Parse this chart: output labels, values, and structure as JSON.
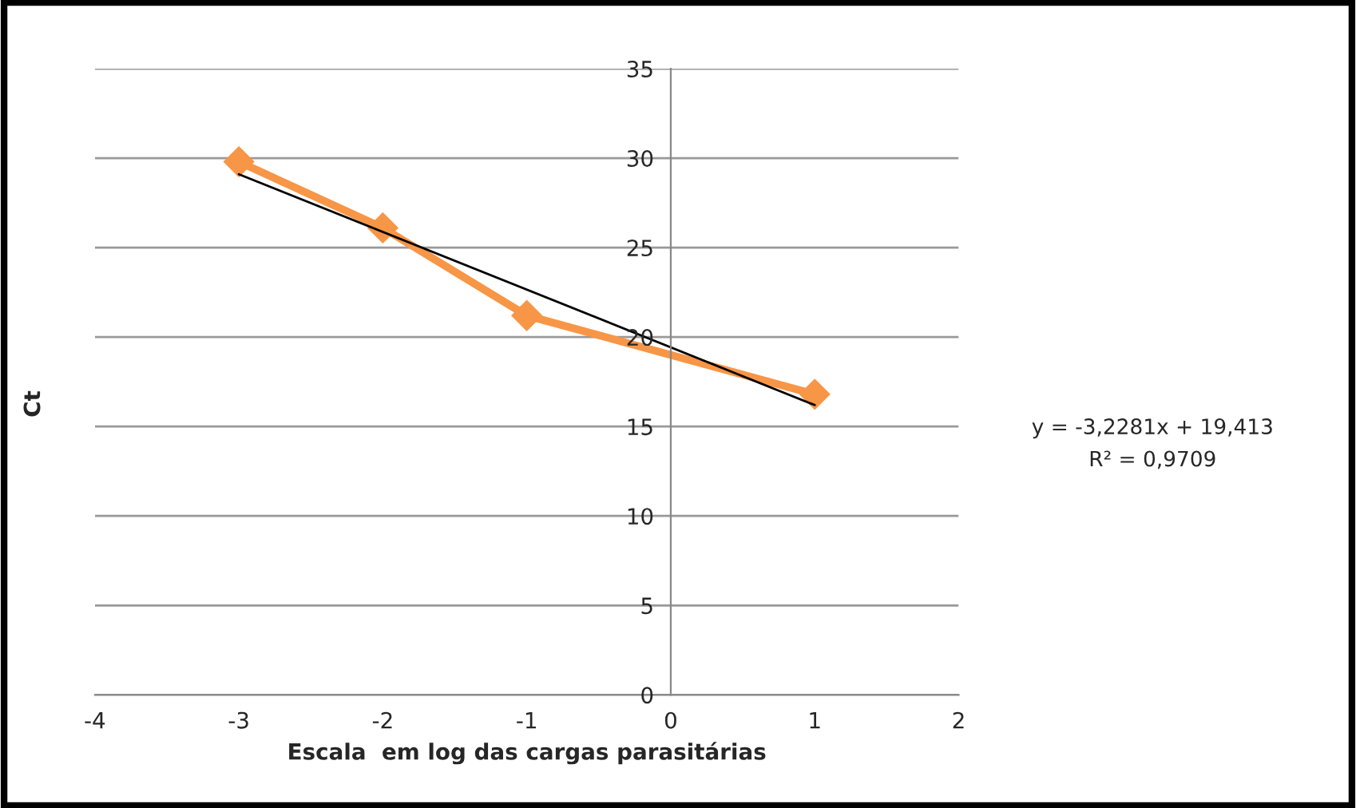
{
  "chart_data": {
    "type": "line",
    "xlabel": "Escala  em log das cargas parasitárias",
    "ylabel": "Ct",
    "xlim": [
      -4,
      2
    ],
    "xticks": [
      -4,
      -3,
      -2,
      -1,
      0,
      1,
      2
    ],
    "ylim": [
      0,
      35
    ],
    "yticks": [
      0,
      5,
      10,
      15,
      20,
      25,
      30,
      35
    ],
    "grid": "y",
    "series": [
      {
        "color": "#f79646",
        "x": [
          -3,
          -2,
          -1,
          1
        ],
        "values": [
          29.8,
          26.1,
          21.2,
          16.8
        ],
        "marker": "diamond",
        "line_style": "solid"
      },
      {
        "color": "#000000",
        "x": [
          -3,
          1
        ],
        "values": [
          29.1,
          16.2
        ],
        "marker": "none",
        "line_style": "solid"
      }
    ],
    "annotations": [
      "y = -3,2281x + 19,413",
      "R² = 0,9709"
    ]
  }
}
